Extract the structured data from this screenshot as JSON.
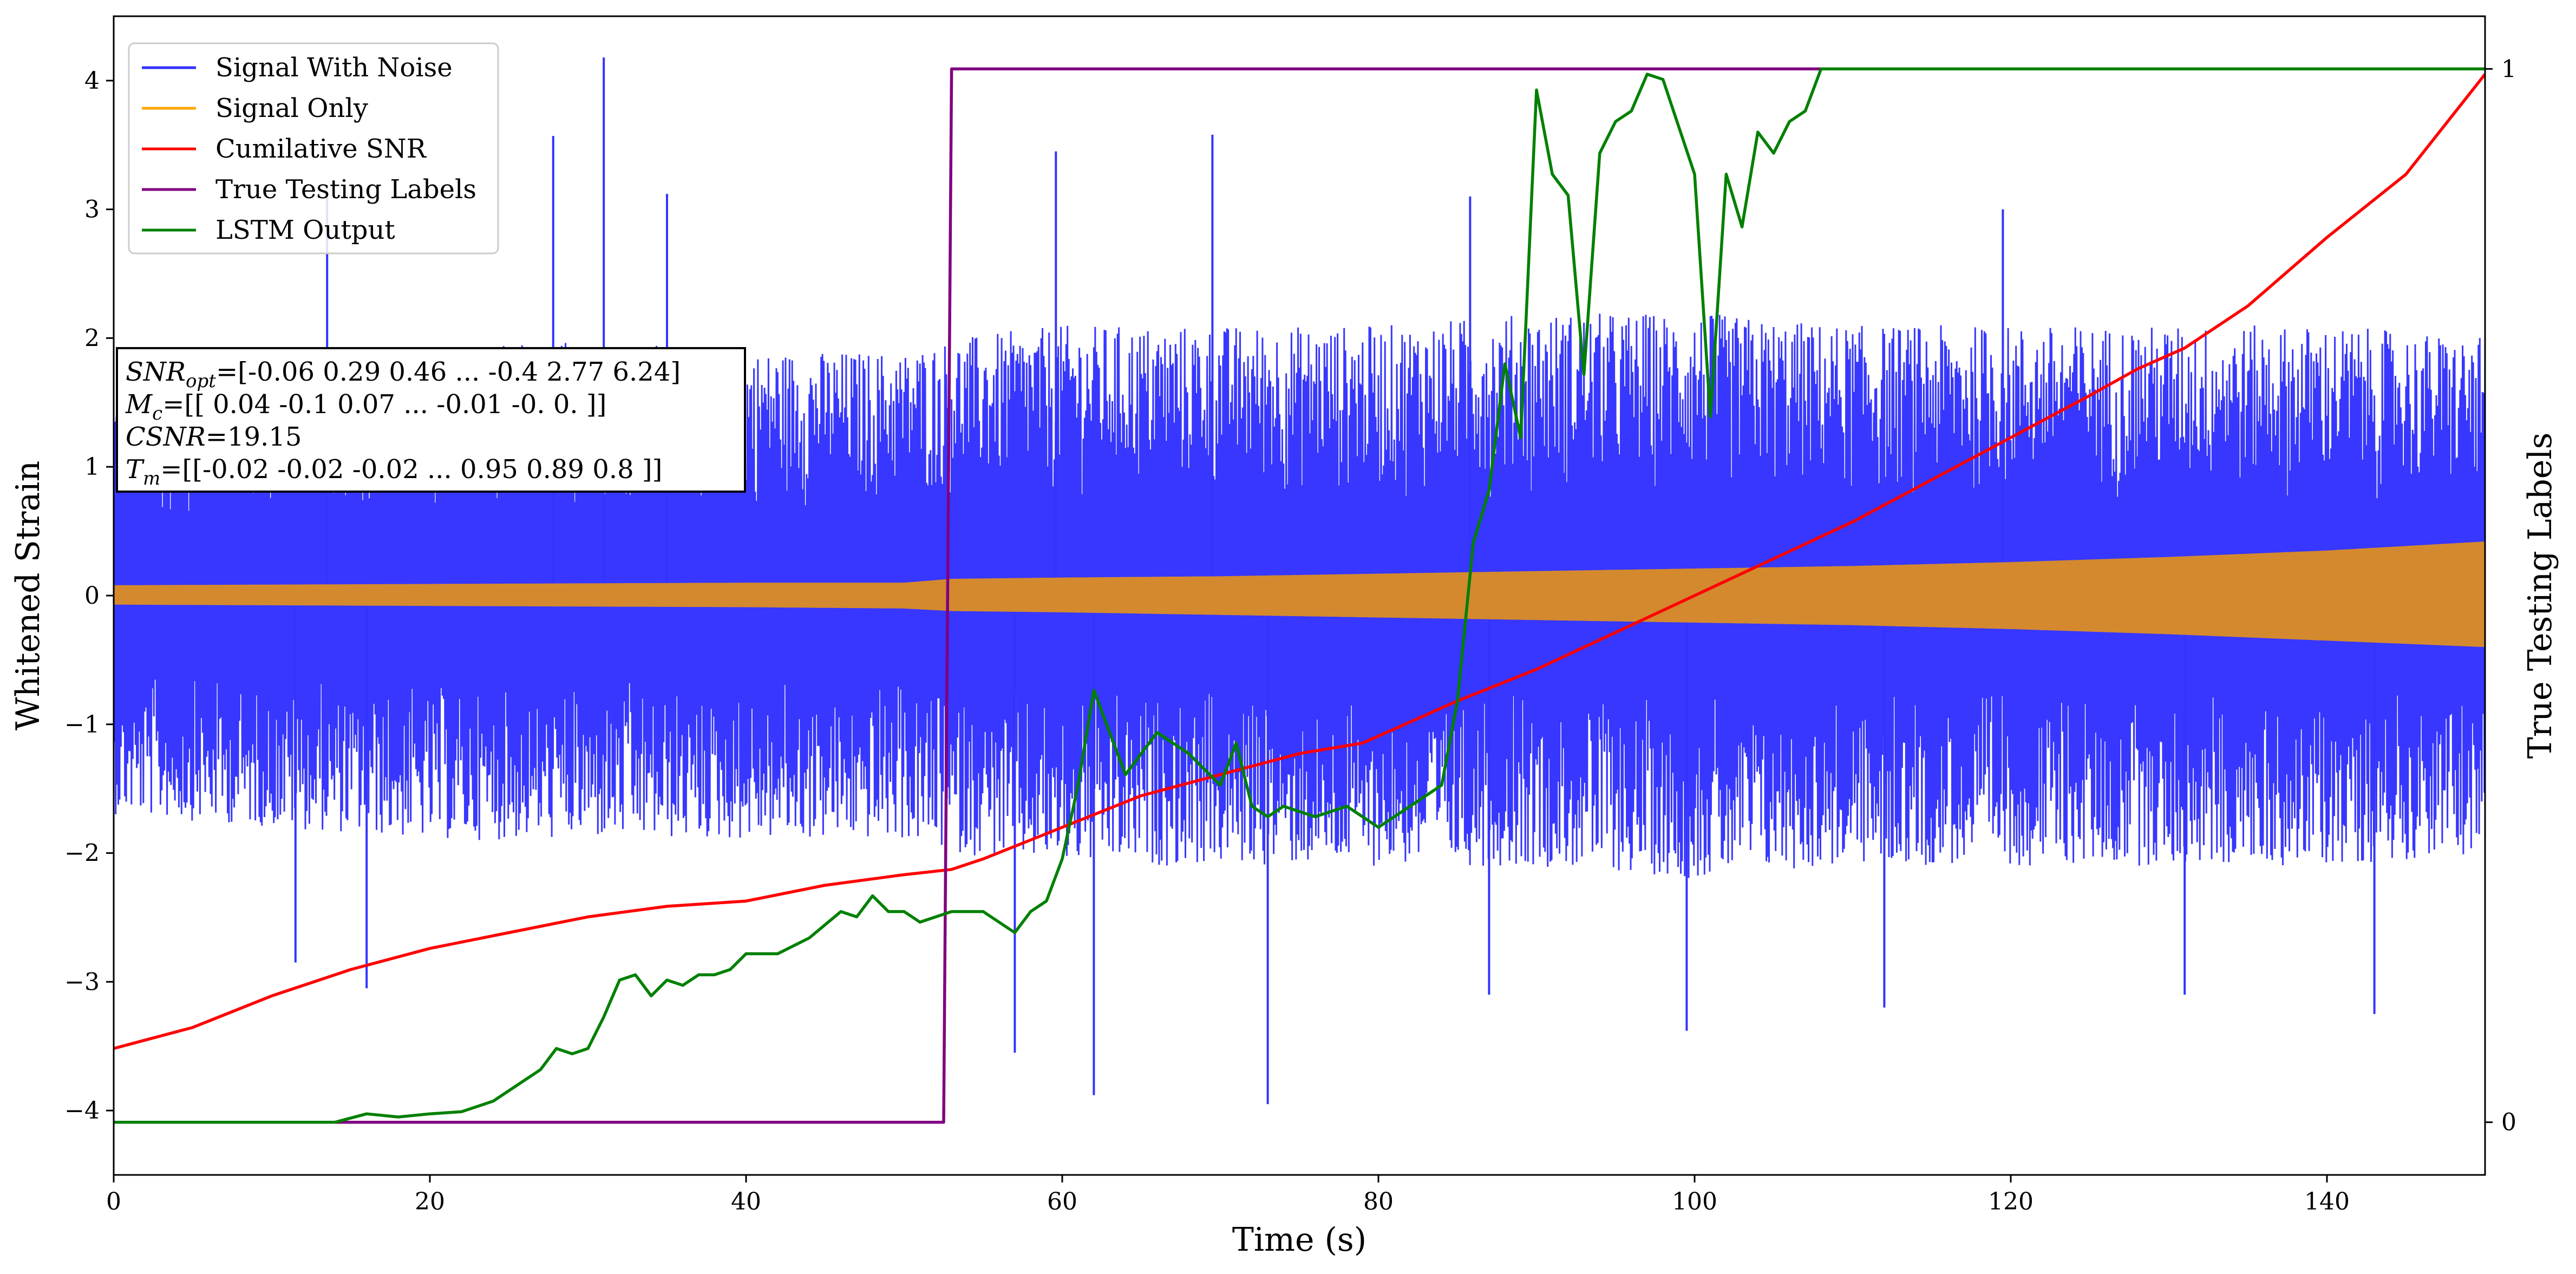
{
  "chart_data": {
    "type": "line",
    "xlabel": "Time (s)",
    "ylabel": "Whitened Strain",
    "ylabel_right": "True Testing Labels",
    "xlim": [
      0,
      150
    ],
    "ylim": [
      -4.5,
      4.5
    ],
    "ylim_right": [
      -0.05,
      1.05
    ],
    "x_ticks": [
      0,
      20,
      40,
      60,
      80,
      100,
      120,
      140
    ],
    "y_ticks": [
      -4,
      -3,
      -2,
      -1,
      0,
      1,
      2,
      3,
      4
    ],
    "y_right_ticks": [
      0,
      1
    ],
    "legend_position": "upper-left",
    "grid": false,
    "annotation": {
      "line1_sym": "SNR",
      "line1_sub": "opt",
      "line1_val": "=[-0.06  0.29  0.46 ... -0.4   2.77  6.24]",
      "line2_sym": "M",
      "line2_sub": "c",
      "line2_val": "=[[ 0.04 -0.1   0.07 ... -0.01 -0.    0.  ]]",
      "line3_sym": "CSNR",
      "line3_val": "=19.15",
      "line4_sym": "T",
      "line4_sub": "m",
      "line4_val": "=[[-0.02 -0.02 -0.02 ...  0.95  0.89  0.8 ]]"
    },
    "series": [
      {
        "name": "Signal With Noise",
        "color": "#3333ff",
        "axis": "left",
        "envelope": {
          "x": [
            0,
            10,
            20,
            30,
            40,
            50,
            53,
            60,
            70,
            80,
            90,
            100,
            110,
            120,
            130,
            140,
            150
          ],
          "upper": [
            1.6,
            1.8,
            1.9,
            2.0,
            1.9,
            1.9,
            2.0,
            2.1,
            2.1,
            2.1,
            2.2,
            2.2,
            2.1,
            2.1,
            2.1,
            2.1,
            2.0
          ],
          "lower": [
            -1.7,
            -1.8,
            -1.9,
            -1.9,
            -1.9,
            -1.9,
            -2.0,
            -2.1,
            -2.1,
            -2.1,
            -2.1,
            -2.2,
            -2.1,
            -2.1,
            -2.1,
            -2.1,
            -2.0
          ]
        },
        "spikes": [
          {
            "x": 31.0,
            "y": 4.18
          },
          {
            "x": 27.8,
            "y": 3.57
          },
          {
            "x": 69.5,
            "y": 3.58
          },
          {
            "x": 59.6,
            "y": 3.45
          },
          {
            "x": 35.0,
            "y": 3.12
          },
          {
            "x": 13.5,
            "y": 3.1
          },
          {
            "x": 85.8,
            "y": 3.1
          },
          {
            "x": 119.5,
            "y": 3.0
          },
          {
            "x": 62.0,
            "y": -3.88
          },
          {
            "x": 73.0,
            "y": -3.95
          },
          {
            "x": 99.5,
            "y": -3.38
          },
          {
            "x": 57.0,
            "y": -3.55
          },
          {
            "x": 143.0,
            "y": -3.25
          },
          {
            "x": 16.0,
            "y": -3.05
          },
          {
            "x": 87.0,
            "y": -3.1
          },
          {
            "x": 112.0,
            "y": -3.2
          },
          {
            "x": 131.0,
            "y": -3.1
          },
          {
            "x": 11.5,
            "y": -2.85
          }
        ]
      },
      {
        "name": "Signal Only",
        "color": "#ffa500",
        "axis": "left",
        "envelope": {
          "x": [
            0,
            20,
            40,
            50,
            53,
            60,
            70,
            80,
            90,
            100,
            110,
            120,
            130,
            140,
            150
          ],
          "upper": [
            0.08,
            0.09,
            0.1,
            0.1,
            0.13,
            0.14,
            0.15,
            0.17,
            0.19,
            0.21,
            0.23,
            0.26,
            0.3,
            0.35,
            0.42
          ],
          "lower": [
            -0.07,
            -0.08,
            -0.09,
            -0.1,
            -0.12,
            -0.13,
            -0.15,
            -0.17,
            -0.19,
            -0.21,
            -0.23,
            -0.26,
            -0.3,
            -0.35,
            -0.4
          ]
        }
      },
      {
        "name": "Cumilative SNR",
        "color": "#ff0000",
        "axis": "right",
        "x": [
          0,
          5,
          10,
          15,
          20,
          25,
          30,
          35,
          40,
          45,
          50,
          53,
          55,
          60,
          65,
          70,
          75,
          79,
          85,
          90,
          95,
          100,
          105,
          110,
          115,
          120,
          125,
          128,
          131,
          135,
          140,
          145,
          150
        ],
        "values": [
          0.07,
          0.09,
          0.12,
          0.145,
          0.165,
          0.18,
          0.195,
          0.205,
          0.21,
          0.225,
          0.235,
          0.24,
          0.25,
          0.28,
          0.31,
          0.33,
          0.35,
          0.36,
          0.4,
          0.43,
          0.465,
          0.5,
          0.535,
          0.57,
          0.61,
          0.65,
          0.69,
          0.715,
          0.735,
          0.775,
          0.84,
          0.9,
          0.995
        ]
      },
      {
        "name": "True Testing Labels",
        "color": "#800080",
        "axis": "right",
        "x": [
          0,
          52.5,
          53.0,
          150
        ],
        "values": [
          0,
          0,
          1,
          1
        ]
      },
      {
        "name": "LSTM Output",
        "color": "#008000",
        "axis": "right",
        "x": [
          0,
          14,
          16,
          18,
          20,
          22,
          24,
          26,
          27,
          28,
          29,
          30,
          31,
          32,
          33,
          34,
          35,
          36,
          37,
          38,
          39,
          40,
          42,
          44,
          46,
          47,
          48,
          49,
          50,
          51,
          52,
          53,
          55,
          56,
          57,
          58,
          59,
          60,
          61,
          62,
          63,
          64,
          66,
          68,
          70,
          71,
          72,
          73,
          74,
          76,
          78,
          80,
          82,
          84,
          85,
          86,
          87,
          88,
          89,
          90,
          91,
          92,
          93,
          94,
          95,
          96,
          97,
          98,
          100,
          101,
          102,
          103,
          104,
          105,
          106,
          107,
          108,
          110,
          150
        ],
        "values": [
          0,
          0,
          0.008,
          0.005,
          0.008,
          0.01,
          0.02,
          0.04,
          0.05,
          0.07,
          0.065,
          0.07,
          0.1,
          0.135,
          0.14,
          0.12,
          0.135,
          0.13,
          0.14,
          0.14,
          0.145,
          0.16,
          0.16,
          0.175,
          0.2,
          0.195,
          0.215,
          0.2,
          0.2,
          0.19,
          0.195,
          0.2,
          0.2,
          0.19,
          0.18,
          0.2,
          0.21,
          0.25,
          0.32,
          0.41,
          0.37,
          0.33,
          0.37,
          0.35,
          0.32,
          0.36,
          0.3,
          0.29,
          0.3,
          0.29,
          0.3,
          0.28,
          0.3,
          0.32,
          0.4,
          0.55,
          0.6,
          0.72,
          0.65,
          0.98,
          0.9,
          0.88,
          0.71,
          0.92,
          0.95,
          0.96,
          0.995,
          0.99,
          0.9,
          0.67,
          0.9,
          0.85,
          0.94,
          0.92,
          0.95,
          0.96,
          1.0,
          1.0,
          1.0
        ]
      }
    ]
  }
}
